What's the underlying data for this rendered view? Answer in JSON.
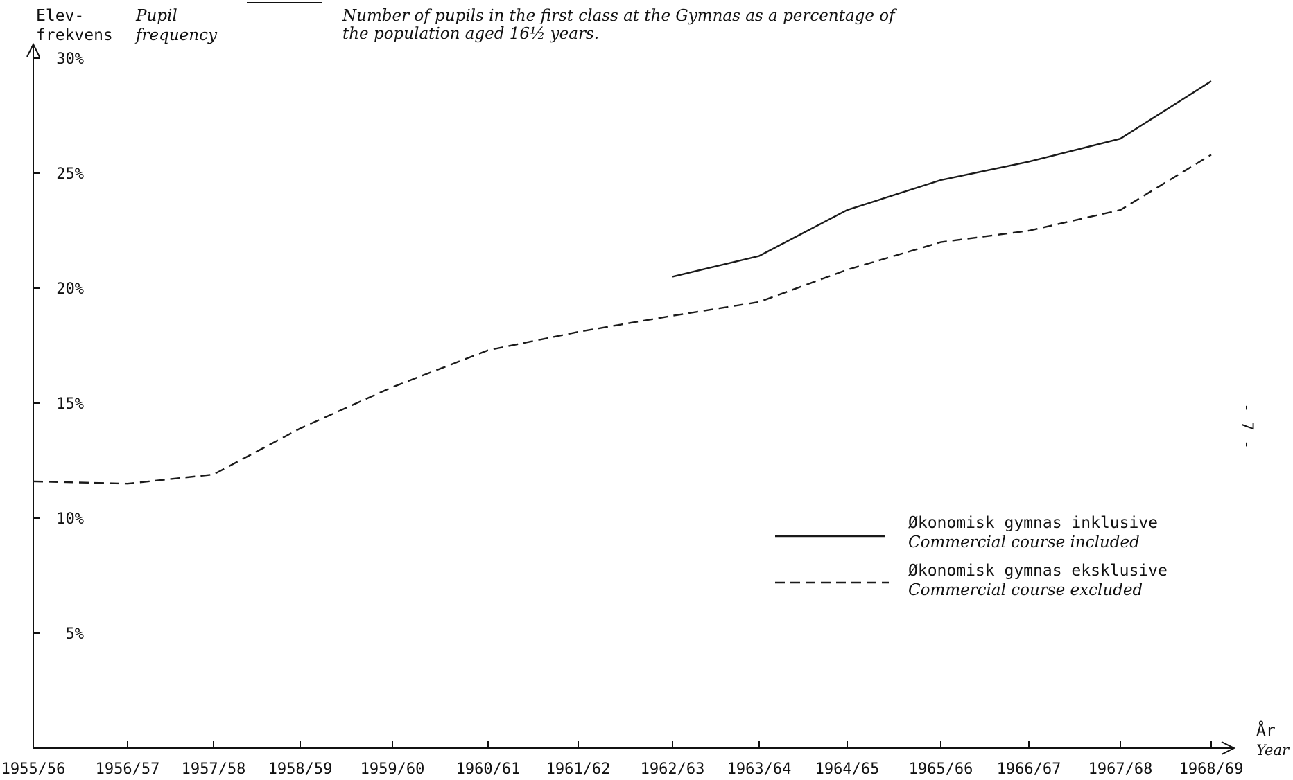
{
  "header": {
    "ylabel_no_1": "Elev-",
    "ylabel_no_2": "frekvens",
    "ylabel_en_1": "Pupil",
    "ylabel_en_2": "frequency",
    "caption_en_1": "Number of pupils in the first class at the Gymnas as a percentage of",
    "caption_en_2": "the population aged 16½ years."
  },
  "xaxis": {
    "label_no": "År",
    "label_en": "Year"
  },
  "side_mark": "- 7 -",
  "legend": {
    "solid_no": "Økonomisk gymnas inklusive",
    "solid_en": "Commercial course included",
    "dashed_no": "Økonomisk gymnas eksklusive",
    "dashed_en": "Commercial course excluded"
  },
  "chart_data": {
    "type": "line",
    "x": [
      "1955/56",
      "1956/57",
      "1957/58",
      "1958/59",
      "1959/60",
      "1960/61",
      "1961/62",
      "1962/63",
      "1963/64",
      "1964/65",
      "1965/66",
      "1966/67",
      "1967/68",
      "1968/69"
    ],
    "ylim": [
      0,
      30
    ],
    "yticks": [
      5,
      10,
      15,
      20,
      25,
      30
    ],
    "ytick_labels": [
      "5%",
      "10%",
      "15%",
      "20%",
      "25%",
      "30%"
    ],
    "series": [
      {
        "name": "Økonomisk gymnas inklusive",
        "style": "solid",
        "values": [
          null,
          null,
          null,
          null,
          null,
          null,
          null,
          20.5,
          21.4,
          23.4,
          24.7,
          25.5,
          26.5,
          29.0
        ]
      },
      {
        "name": "Økonomisk gymnas eksklusive",
        "style": "dashed",
        "values": [
          11.6,
          11.5,
          11.9,
          13.9,
          15.7,
          17.3,
          18.1,
          18.8,
          19.4,
          20.8,
          22.0,
          22.5,
          23.4,
          25.8
        ]
      }
    ]
  }
}
